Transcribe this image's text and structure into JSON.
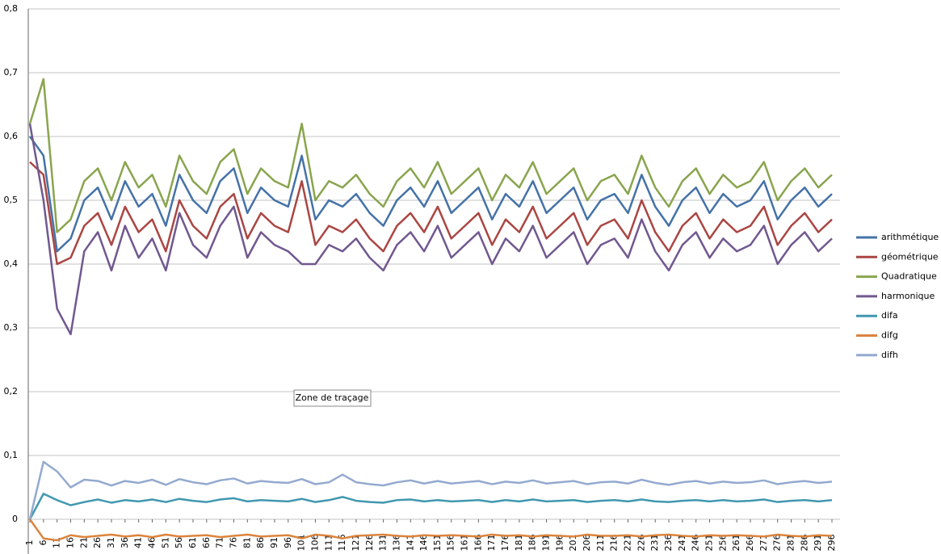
{
  "chart_data": {
    "type": "line",
    "tooltip": "Zone de traçage",
    "categories": [
      "1",
      "6",
      "11",
      "16",
      "21",
      "26",
      "31",
      "36",
      "41",
      "46",
      "51",
      "56",
      "61",
      "66",
      "71",
      "76",
      "81",
      "86",
      "91",
      "96",
      "101",
      "106",
      "111",
      "116",
      "121",
      "126",
      "131",
      "136",
      "141",
      "146",
      "151",
      "156",
      "161",
      "166",
      "171",
      "176",
      "181",
      "186",
      "191",
      "196",
      "201",
      "206",
      "211",
      "216",
      "221",
      "226",
      "231",
      "236",
      "241",
      "246",
      "251",
      "256",
      "261",
      "266",
      "271",
      "276",
      "281",
      "286",
      "291",
      "296"
    ],
    "ylim": [
      0,
      0.8
    ],
    "yticks": [
      0,
      {
        "value": 0.1,
        "label": "0,1"
      },
      {
        "value": 0.2,
        "label": "0,2"
      },
      {
        "value": 0.3,
        "label": "0,3"
      },
      {
        "value": 0.4,
        "label": "0,4"
      },
      {
        "value": 0.5,
        "label": "0,5"
      },
      {
        "value": 0.6,
        "label": "0,6"
      },
      {
        "value": 0.7,
        "label": "0,7"
      },
      {
        "value": 0.8,
        "label": "0,8"
      }
    ],
    "grid": true,
    "legend": "right",
    "series": [
      {
        "name": "arithmétique",
        "color": "#4572a7",
        "values": [
          0.6,
          0.57,
          0.42,
          0.44,
          0.5,
          0.52,
          0.47,
          0.53,
          0.49,
          0.51,
          0.46,
          0.54,
          0.5,
          0.48,
          0.53,
          0.55,
          0.48,
          0.52,
          0.5,
          0.49,
          0.57,
          0.47,
          0.5,
          0.49,
          0.51,
          0.48,
          0.46,
          0.5,
          0.52,
          0.49,
          0.53,
          0.48,
          0.5,
          0.52,
          0.47,
          0.51,
          0.49,
          0.53,
          0.48,
          0.5,
          0.52,
          0.47,
          0.5,
          0.51,
          0.48,
          0.54,
          0.49,
          0.46,
          0.5,
          0.52,
          0.48,
          0.51,
          0.49,
          0.5,
          0.53,
          0.47,
          0.5,
          0.52,
          0.49,
          0.51
        ]
      },
      {
        "name": "géométrique",
        "color": "#aa4643",
        "values": [
          0.56,
          0.54,
          0.4,
          0.41,
          0.46,
          0.48,
          0.43,
          0.49,
          0.45,
          0.47,
          0.42,
          0.5,
          0.46,
          0.44,
          0.49,
          0.51,
          0.44,
          0.48,
          0.46,
          0.45,
          0.53,
          0.43,
          0.46,
          0.45,
          0.47,
          0.44,
          0.42,
          0.46,
          0.48,
          0.45,
          0.49,
          0.44,
          0.46,
          0.48,
          0.43,
          0.47,
          0.45,
          0.49,
          0.44,
          0.46,
          0.48,
          0.43,
          0.46,
          0.47,
          0.44,
          0.5,
          0.45,
          0.42,
          0.46,
          0.48,
          0.44,
          0.47,
          0.45,
          0.46,
          0.49,
          0.43,
          0.46,
          0.48,
          0.45,
          0.47
        ]
      },
      {
        "name": "Quadratique",
        "color": "#89a54e",
        "values": [
          0.62,
          0.69,
          0.45,
          0.47,
          0.53,
          0.55,
          0.5,
          0.56,
          0.52,
          0.54,
          0.49,
          0.57,
          0.53,
          0.51,
          0.56,
          0.58,
          0.51,
          0.55,
          0.53,
          0.52,
          0.62,
          0.5,
          0.53,
          0.52,
          0.54,
          0.51,
          0.49,
          0.53,
          0.55,
          0.52,
          0.56,
          0.51,
          0.53,
          0.55,
          0.5,
          0.54,
          0.52,
          0.56,
          0.51,
          0.53,
          0.55,
          0.5,
          0.53,
          0.54,
          0.51,
          0.57,
          0.52,
          0.49,
          0.53,
          0.55,
          0.51,
          0.54,
          0.52,
          0.53,
          0.56,
          0.5,
          0.53,
          0.55,
          0.52,
          0.54
        ]
      },
      {
        "name": "harmonique",
        "color": "#71588f",
        "values": [
          0.62,
          0.5,
          0.33,
          0.29,
          0.42,
          0.45,
          0.39,
          0.46,
          0.41,
          0.44,
          0.39,
          0.48,
          0.43,
          0.41,
          0.46,
          0.49,
          0.41,
          0.45,
          0.43,
          0.42,
          0.4,
          0.4,
          0.43,
          0.42,
          0.44,
          0.41,
          0.39,
          0.43,
          0.45,
          0.42,
          0.46,
          0.41,
          0.43,
          0.45,
          0.4,
          0.44,
          0.42,
          0.46,
          0.41,
          0.43,
          0.45,
          0.4,
          0.43,
          0.44,
          0.41,
          0.47,
          0.42,
          0.39,
          0.43,
          0.45,
          0.41,
          0.44,
          0.42,
          0.43,
          0.46,
          0.4,
          0.43,
          0.45,
          0.42,
          0.44
        ]
      },
      {
        "name": "difa",
        "color": "#4198af",
        "values": [
          0.0,
          0.04,
          0.03,
          0.022,
          0.027,
          0.031,
          0.026,
          0.03,
          0.028,
          0.031,
          0.027,
          0.032,
          0.029,
          0.027,
          0.031,
          0.033,
          0.028,
          0.03,
          0.029,
          0.028,
          0.032,
          0.027,
          0.03,
          0.035,
          0.029,
          0.027,
          0.026,
          0.03,
          0.031,
          0.028,
          0.03,
          0.028,
          0.029,
          0.03,
          0.027,
          0.03,
          0.028,
          0.031,
          0.028,
          0.029,
          0.03,
          0.027,
          0.029,
          0.03,
          0.028,
          0.031,
          0.028,
          0.027,
          0.029,
          0.03,
          0.028,
          0.03,
          0.028,
          0.029,
          0.031,
          0.027,
          0.029,
          0.03,
          0.028,
          0.03
        ]
      },
      {
        "name": "difg",
        "color": "#db843d",
        "values": [
          0.0,
          -0.03,
          -0.033,
          -0.025,
          -0.028,
          -0.026,
          -0.024,
          -0.027,
          -0.025,
          -0.028,
          -0.024,
          -0.027,
          -0.026,
          -0.025,
          -0.028,
          -0.026,
          -0.024,
          -0.027,
          -0.026,
          -0.025,
          -0.03,
          -0.024,
          -0.026,
          -0.03,
          -0.026,
          -0.025,
          -0.024,
          -0.026,
          -0.027,
          -0.025,
          -0.026,
          -0.025,
          -0.026,
          -0.027,
          -0.024,
          -0.026,
          -0.025,
          -0.027,
          -0.025,
          -0.026,
          -0.027,
          -0.024,
          -0.026,
          -0.026,
          -0.025,
          -0.027,
          -0.025,
          -0.024,
          -0.026,
          -0.027,
          -0.025,
          -0.026,
          -0.025,
          -0.026,
          -0.027,
          -0.024,
          -0.026,
          -0.027,
          -0.025,
          -0.026
        ]
      },
      {
        "name": "difh",
        "color": "#93a9cf",
        "values": [
          0.0,
          0.09,
          0.075,
          0.05,
          0.062,
          0.06,
          0.053,
          0.06,
          0.057,
          0.062,
          0.054,
          0.063,
          0.058,
          0.055,
          0.061,
          0.064,
          0.056,
          0.06,
          0.058,
          0.057,
          0.063,
          0.055,
          0.058,
          0.07,
          0.058,
          0.055,
          0.053,
          0.058,
          0.061,
          0.056,
          0.06,
          0.056,
          0.058,
          0.06,
          0.055,
          0.059,
          0.057,
          0.061,
          0.056,
          0.058,
          0.06,
          0.055,
          0.058,
          0.059,
          0.056,
          0.062,
          0.057,
          0.054,
          0.058,
          0.06,
          0.056,
          0.059,
          0.057,
          0.058,
          0.061,
          0.055,
          0.058,
          0.06,
          0.057,
          0.059
        ]
      }
    ]
  }
}
